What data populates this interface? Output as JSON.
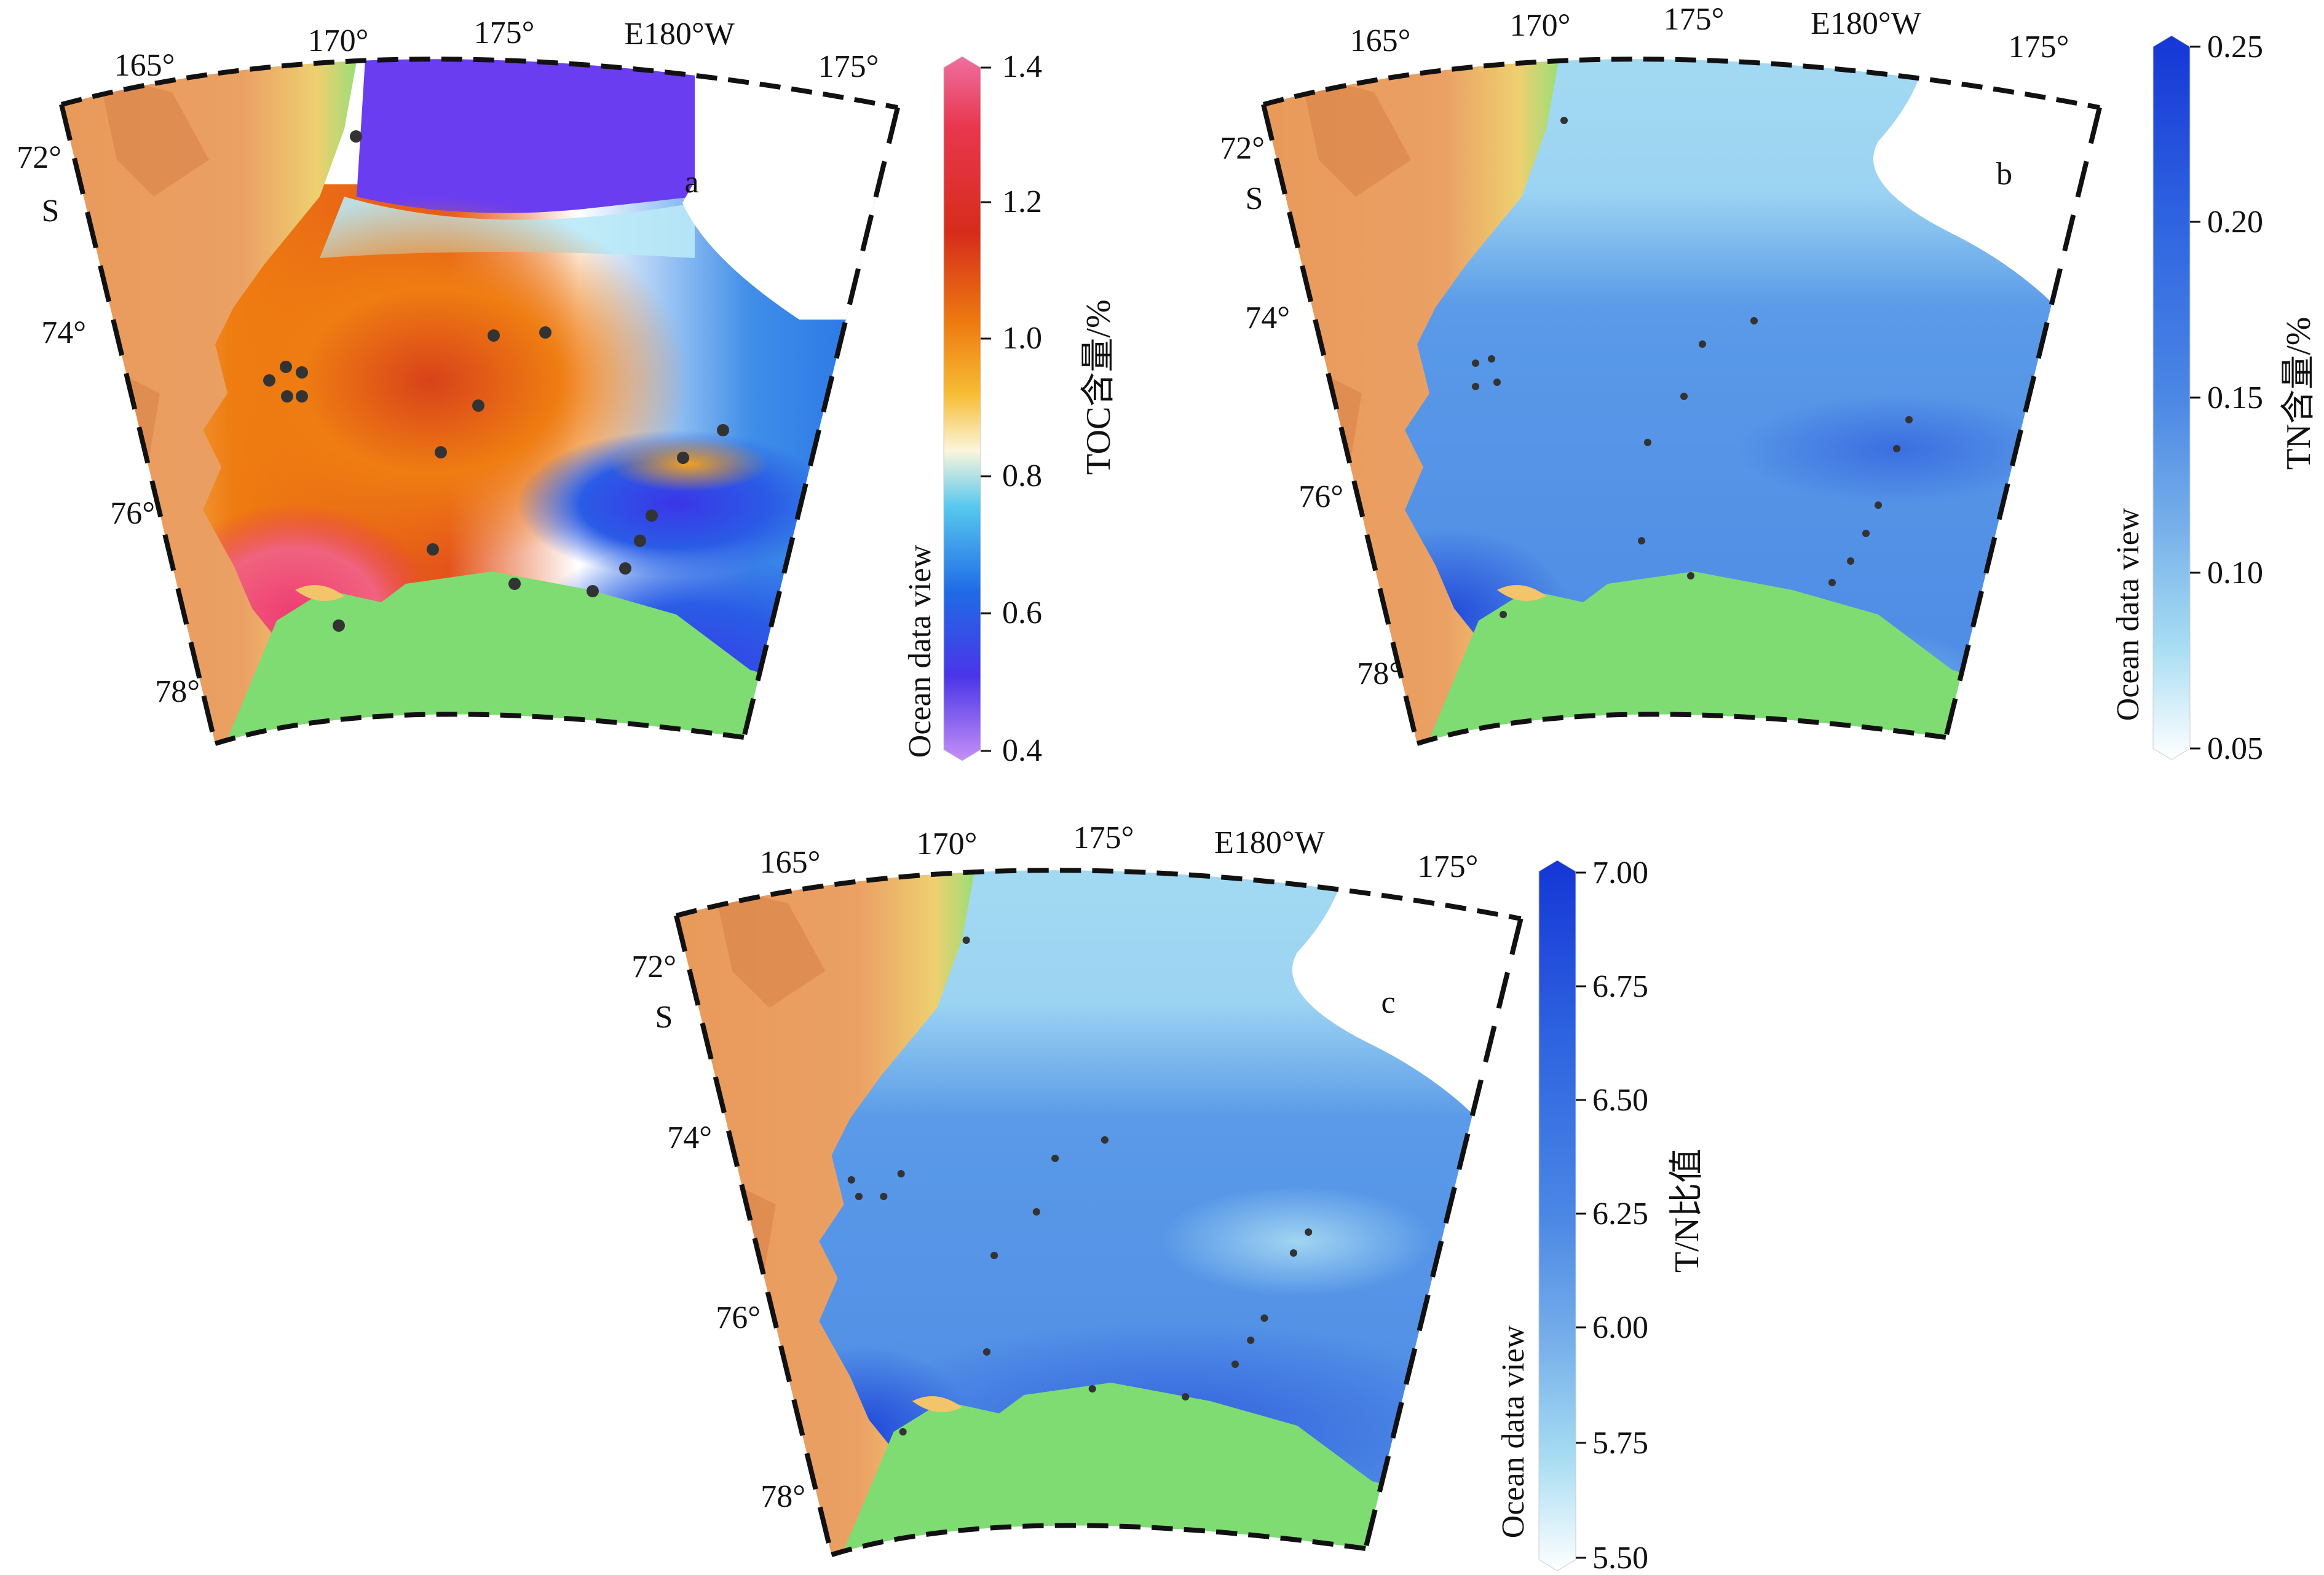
{
  "figure": {
    "panels": [
      {
        "id": "a",
        "letter": "a",
        "lon_labels": [
          "165°",
          "170°",
          "175°",
          "E180°W",
          "175°"
        ],
        "lat_labels": [
          "72°",
          "S",
          "74°",
          "76°",
          "78°"
        ],
        "colorbar": {
          "label": "TOC含量/%",
          "side_label": "Ocean data view",
          "ticks": [
            "1.4",
            "1.2",
            "1.0",
            "0.8",
            "0.6",
            "0.4"
          ],
          "colors": [
            "#ef6fa0",
            "#e8374e",
            "#d62c1a",
            "#ee7c10",
            "#f7bd35",
            "#fbf5dc",
            "#56c8ef",
            "#1f6be6",
            "#4a35e8",
            "#9b5cf0",
            "#c690f6"
          ]
        }
      },
      {
        "id": "b",
        "letter": "b",
        "lon_labels": [
          "165°",
          "170°",
          "175°",
          "E180°W",
          "175°"
        ],
        "lat_labels": [
          "72°",
          "S",
          "74°",
          "76°",
          "78°"
        ],
        "colorbar": {
          "label": "TN含量/%",
          "side_label": "Ocean data view",
          "ticks": [
            "0.25",
            "0.20",
            "0.15",
            "0.10",
            "0.05"
          ],
          "colors": [
            "#1536d6",
            "#2e63e0",
            "#4b87e4",
            "#77b0ea",
            "#a6dcf2",
            "#ffffff"
          ]
        }
      },
      {
        "id": "c",
        "letter": "c",
        "lon_labels": [
          "165°",
          "170°",
          "175°",
          "E180°W",
          "175°"
        ],
        "lat_labels": [
          "72°",
          "S",
          "74°",
          "76°",
          "78°"
        ],
        "colorbar": {
          "label": "T/N比值",
          "side_label": "Ocean data view",
          "ticks": [
            "7.00",
            "6.75",
            "6.50",
            "6.25",
            "6.00",
            "5.75",
            "5.50"
          ],
          "colors": [
            "#1536d6",
            "#2e63e0",
            "#4b87e4",
            "#77b0ea",
            "#a6dcf2",
            "#ffffff"
          ]
        }
      }
    ]
  }
}
